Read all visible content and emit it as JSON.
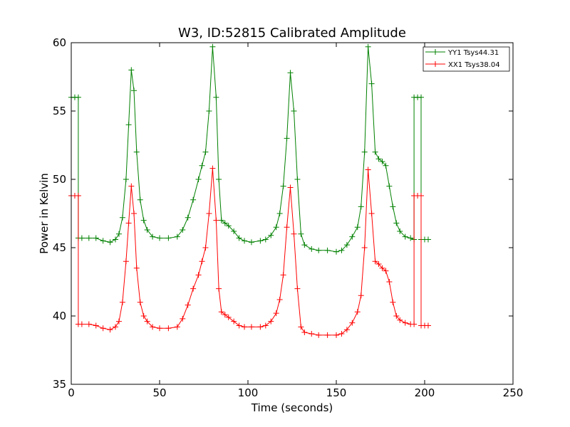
{
  "chart_data": {
    "type": "line",
    "title": "W3, ID:52815 Calibrated Amplitude",
    "xlabel": "Time (seconds)",
    "ylabel": "Power in Kelvin",
    "xlim": [
      0,
      250
    ],
    "ylim": [
      35,
      60
    ],
    "xticks": [
      0,
      50,
      100,
      150,
      200,
      250
    ],
    "yticks": [
      35,
      40,
      45,
      50,
      55,
      60
    ],
    "grid": false,
    "legend": "top-right",
    "marker": "+",
    "series": [
      {
        "name": "YY1 Tsys44.31",
        "color": "#008000",
        "points": [
          [
            0,
            56
          ],
          [
            2,
            56
          ],
          [
            4,
            56
          ],
          [
            4,
            45.7
          ],
          [
            6,
            45.7
          ],
          [
            10,
            45.7
          ],
          [
            14,
            45.7
          ],
          [
            18,
            45.5
          ],
          [
            22,
            45.4
          ],
          [
            25,
            45.6
          ],
          [
            27,
            46.0
          ],
          [
            29,
            47.2
          ],
          [
            31,
            50.0
          ],
          [
            32.5,
            54.0
          ],
          [
            34,
            58.0
          ],
          [
            35.5,
            56.5
          ],
          [
            37,
            52.0
          ],
          [
            39,
            48.5
          ],
          [
            41,
            47.0
          ],
          [
            43,
            46.3
          ],
          [
            46,
            45.8
          ],
          [
            50,
            45.7
          ],
          [
            55,
            45.7
          ],
          [
            60,
            45.8
          ],
          [
            63,
            46.3
          ],
          [
            66,
            47.2
          ],
          [
            69,
            48.5
          ],
          [
            72,
            50.0
          ],
          [
            74,
            51.0
          ],
          [
            76,
            52.0
          ],
          [
            78,
            55.0
          ],
          [
            80,
            59.7
          ],
          [
            82,
            56.0
          ],
          [
            83.5,
            50.0
          ],
          [
            85,
            47.0
          ],
          [
            87,
            46.8
          ],
          [
            89,
            46.6
          ],
          [
            92,
            46.2
          ],
          [
            95,
            45.7
          ],
          [
            98,
            45.5
          ],
          [
            102,
            45.4
          ],
          [
            107,
            45.5
          ],
          [
            110,
            45.6
          ],
          [
            113,
            45.9
          ],
          [
            116,
            46.5
          ],
          [
            118,
            47.5
          ],
          [
            120,
            49.5
          ],
          [
            122,
            53.0
          ],
          [
            124,
            57.8
          ],
          [
            126,
            55.0
          ],
          [
            128,
            50.0
          ],
          [
            130,
            46.0
          ],
          [
            132,
            45.2
          ],
          [
            136,
            44.9
          ],
          [
            140,
            44.8
          ],
          [
            145,
            44.8
          ],
          [
            150,
            44.7
          ],
          [
            153,
            44.8
          ],
          [
            156,
            45.2
          ],
          [
            159,
            45.8
          ],
          [
            162,
            46.5
          ],
          [
            164,
            48.0
          ],
          [
            166,
            52.0
          ],
          [
            168,
            59.7
          ],
          [
            170,
            57.0
          ],
          [
            172,
            52.0
          ],
          [
            174,
            51.5
          ],
          [
            176,
            51.3
          ],
          [
            178,
            51.0
          ],
          [
            180,
            49.5
          ],
          [
            182,
            48.0
          ],
          [
            184,
            46.8
          ],
          [
            186,
            46.2
          ],
          [
            189,
            45.8
          ],
          [
            192,
            45.7
          ],
          [
            194,
            45.6
          ],
          [
            194,
            56
          ],
          [
            196,
            56
          ],
          [
            198,
            56
          ],
          [
            198,
            45.6
          ],
          [
            200,
            45.6
          ],
          [
            202,
            45.6
          ]
        ]
      },
      {
        "name": "XX1 Tsys38.04",
        "color": "#ff0000",
        "points": [
          [
            0,
            48.8
          ],
          [
            2,
            48.8
          ],
          [
            4,
            48.8
          ],
          [
            4,
            39.4
          ],
          [
            6,
            39.4
          ],
          [
            10,
            39.4
          ],
          [
            14,
            39.3
          ],
          [
            18,
            39.1
          ],
          [
            22,
            39.0
          ],
          [
            25,
            39.2
          ],
          [
            27,
            39.6
          ],
          [
            29,
            41.0
          ],
          [
            31,
            44.0
          ],
          [
            32.5,
            46.8
          ],
          [
            34,
            49.5
          ],
          [
            35.5,
            47.5
          ],
          [
            37,
            43.5
          ],
          [
            39,
            41.0
          ],
          [
            41,
            40.0
          ],
          [
            43,
            39.6
          ],
          [
            46,
            39.2
          ],
          [
            50,
            39.1
          ],
          [
            55,
            39.1
          ],
          [
            60,
            39.2
          ],
          [
            63,
            39.8
          ],
          [
            66,
            40.8
          ],
          [
            69,
            42.0
          ],
          [
            72,
            43.0
          ],
          [
            74,
            44.0
          ],
          [
            76,
            45.0
          ],
          [
            78,
            47.5
          ],
          [
            80,
            50.8
          ],
          [
            82,
            47.0
          ],
          [
            83.5,
            42.0
          ],
          [
            85,
            40.3
          ],
          [
            87,
            40.1
          ],
          [
            89,
            39.9
          ],
          [
            92,
            39.6
          ],
          [
            95,
            39.3
          ],
          [
            98,
            39.2
          ],
          [
            102,
            39.2
          ],
          [
            107,
            39.2
          ],
          [
            110,
            39.3
          ],
          [
            113,
            39.6
          ],
          [
            116,
            40.2
          ],
          [
            118,
            41.2
          ],
          [
            120,
            43.0
          ],
          [
            122,
            46.5
          ],
          [
            124,
            49.4
          ],
          [
            126,
            46.0
          ],
          [
            128,
            42.0
          ],
          [
            130,
            39.2
          ],
          [
            132,
            38.8
          ],
          [
            136,
            38.7
          ],
          [
            140,
            38.6
          ],
          [
            145,
            38.6
          ],
          [
            150,
            38.6
          ],
          [
            153,
            38.7
          ],
          [
            156,
            39.0
          ],
          [
            159,
            39.5
          ],
          [
            162,
            40.3
          ],
          [
            164,
            41.5
          ],
          [
            166,
            45.0
          ],
          [
            168,
            50.7
          ],
          [
            170,
            47.5
          ],
          [
            172,
            44.0
          ],
          [
            174,
            43.8
          ],
          [
            176,
            43.5
          ],
          [
            178,
            43.3
          ],
          [
            180,
            42.5
          ],
          [
            182,
            41.0
          ],
          [
            184,
            40.0
          ],
          [
            186,
            39.7
          ],
          [
            189,
            39.5
          ],
          [
            192,
            39.4
          ],
          [
            194,
            39.4
          ],
          [
            194,
            48.8
          ],
          [
            196,
            48.8
          ],
          [
            198,
            48.8
          ],
          [
            198,
            39.3
          ],
          [
            200,
            39.3
          ],
          [
            202,
            39.3
          ]
        ]
      }
    ]
  }
}
